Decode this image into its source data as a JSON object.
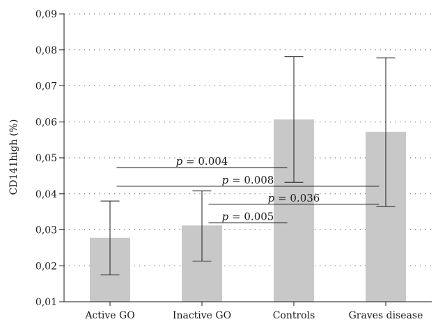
{
  "chart_data": {
    "type": "bar",
    "categories": [
      "Active GO",
      "Inactive GO",
      "Controls",
      "Graves disease"
    ],
    "values": [
      0.0278,
      0.0312,
      0.0607,
      0.0572
    ],
    "error_low": [
      0.0175,
      0.0213,
      0.0432,
      0.0365
    ],
    "error_high": [
      0.038,
      0.0408,
      0.0781,
      0.0778
    ],
    "ylabel": "CD141high (%)",
    "ylim": [
      0.01,
      0.09
    ],
    "yticks": [
      "0,01",
      "0,02",
      "0,03",
      "0,04",
      "0,05",
      "0,06",
      "0,07",
      "0,08",
      "0,09"
    ],
    "grid": "horizontal-dotted",
    "bar_color": "#c8c8c8",
    "annotations": [
      {
        "p_symbol": "p",
        "text": " = 0.004",
        "from": 0,
        "to": 2,
        "y": 0.0473
      },
      {
        "p_symbol": "p",
        "text": " = 0.008",
        "from": 0,
        "to": 3,
        "y": 0.0421
      },
      {
        "p_symbol": "p",
        "text": " = 0.036",
        "from": 1,
        "to": 3,
        "y": 0.0371
      },
      {
        "p_symbol": "p",
        "text": " = 0.005",
        "from": 1,
        "to": 2,
        "y": 0.0319
      }
    ]
  }
}
